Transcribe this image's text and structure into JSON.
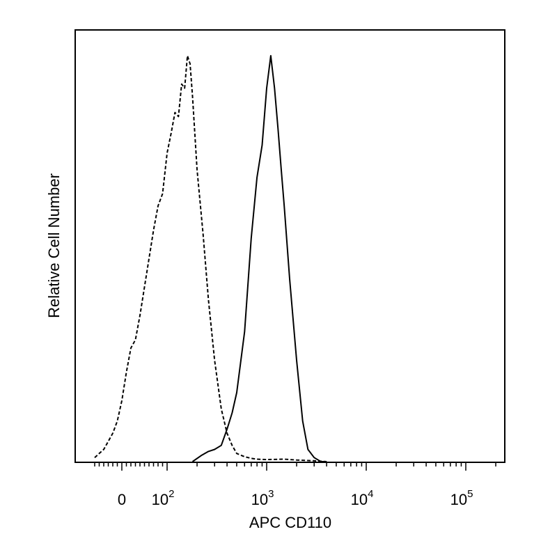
{
  "chart_data": {
    "type": "line",
    "title": "",
    "xlabel": "APC CD110",
    "ylabel": "Relative Cell Number",
    "x_scale": "biexponential",
    "y_range": [
      0,
      100
    ],
    "grid": false,
    "legend": "none",
    "x_ticks": [
      {
        "value": 0,
        "label": "0",
        "exp": ""
      },
      {
        "value": 100,
        "label": "10",
        "exp": "2"
      },
      {
        "value": 1000,
        "label": "10",
        "exp": "3"
      },
      {
        "value": 10000,
        "label": "10",
        "exp": "4"
      },
      {
        "value": 100000,
        "label": "10",
        "exp": "5"
      }
    ],
    "series": [
      {
        "style": "dashed",
        "color": "#000000",
        "x": [
          -60,
          -50,
          -40,
          -30,
          -20,
          -10,
          0,
          10,
          20,
          30,
          40,
          50,
          60,
          70,
          80,
          90,
          100,
          110,
          120,
          130,
          140,
          150,
          160,
          170,
          180,
          200,
          230,
          260,
          300,
          350,
          400,
          450,
          500,
          600,
          700,
          800,
          1000,
          1500,
          2000,
          3000,
          4000
        ],
        "y": [
          1,
          2,
          3,
          5,
          7,
          10,
          15,
          22,
          28,
          30,
          36,
          43,
          50,
          57,
          63,
          66,
          76,
          81,
          86,
          85,
          93,
          92,
          100,
          98,
          90,
          72,
          56,
          40,
          25,
          13,
          7,
          4,
          2,
          1.2,
          0.8,
          0.6,
          0.5,
          0.6,
          0.4,
          0.2,
          0
        ]
      },
      {
        "style": "solid",
        "color": "#000000",
        "x": [
          180,
          220,
          260,
          300,
          350,
          400,
          450,
          500,
          600,
          700,
          800,
          900,
          1000,
          1100,
          1200,
          1300,
          1400,
          1500,
          1700,
          2000,
          2300,
          2600,
          3000,
          3500,
          4000
        ],
        "y": [
          0,
          1.5,
          2.5,
          3,
          4,
          8,
          12,
          17,
          32,
          55,
          70,
          78,
          92,
          100,
          92,
          82,
          72,
          63,
          45,
          25,
          10,
          3,
          1,
          0,
          0
        ]
      }
    ]
  }
}
